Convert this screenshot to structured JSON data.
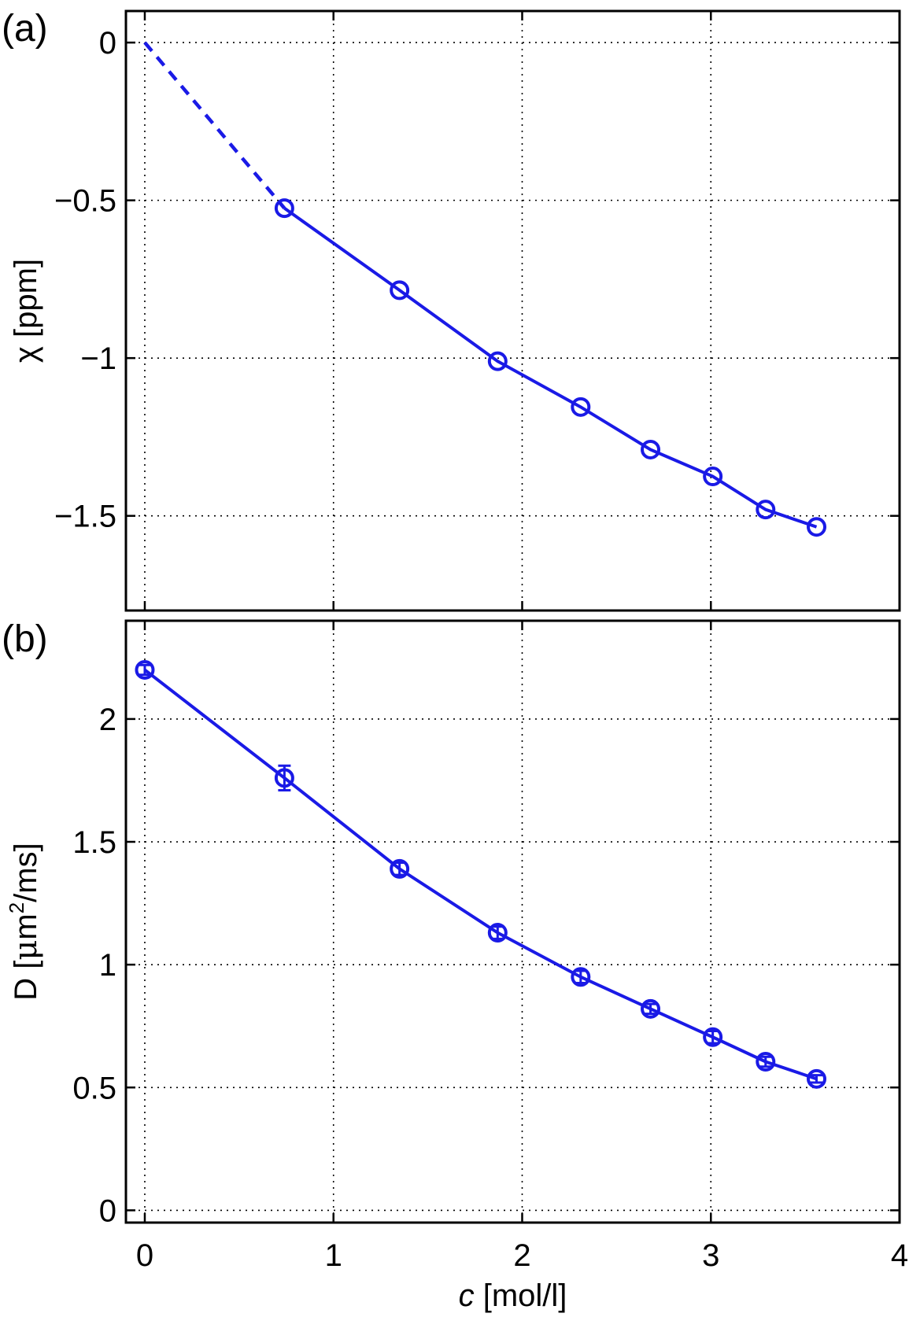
{
  "chart_data": [
    {
      "type": "line",
      "panel_label": "(a)",
      "xlabel_italic": "c",
      "xlabel_rest": " [mol/l]",
      "ylabel": "χ [ppm]",
      "xlim": [
        -0.1,
        4
      ],
      "ylim": [
        -1.8,
        0.1
      ],
      "xticks": [
        0,
        1,
        2,
        3,
        4
      ],
      "yticks": [
        0,
        -0.5,
        -1,
        -1.5
      ],
      "ytick_labels": [
        "0",
        "−0.5",
        "−1",
        "−1.5"
      ],
      "grid": true,
      "color": "#1a1ae6",
      "extrapolation": {
        "x": [
          0,
          0.74
        ],
        "y": [
          0,
          -0.525
        ],
        "style": "dashed"
      },
      "series": [
        {
          "x": [
            0.74,
            1.35,
            1.87,
            2.31,
            2.68,
            3.01,
            3.29,
            3.56
          ],
          "y": [
            -0.525,
            -0.785,
            -1.01,
            -1.155,
            -1.29,
            -1.375,
            -1.48,
            -1.535
          ],
          "marker": "open-circle"
        }
      ]
    },
    {
      "type": "line",
      "panel_label": "(b)",
      "xlabel_italic": "c",
      "xlabel_rest": " [mol/l]",
      "ylabel_parts": [
        "D [",
        "μ",
        "m",
        "2",
        "/ms]"
      ],
      "xlim": [
        -0.1,
        4
      ],
      "ylim": [
        -0.05,
        2.4
      ],
      "xticks": [
        0,
        1,
        2,
        3,
        4
      ],
      "xtick_labels": [
        "0",
        "1",
        "2",
        "3",
        "4"
      ],
      "yticks": [
        0,
        0.5,
        1,
        1.5,
        2
      ],
      "ytick_labels": [
        "0",
        "0.5",
        "1",
        "1.5",
        "2"
      ],
      "grid": true,
      "color": "#1a1ae6",
      "series": [
        {
          "x": [
            0,
            0.74,
            1.35,
            1.87,
            2.31,
            2.68,
            3.01,
            3.29,
            3.56
          ],
          "y": [
            2.2,
            1.76,
            1.39,
            1.13,
            0.95,
            0.82,
            0.705,
            0.605,
            0.535
          ],
          "err": [
            0.02,
            0.05,
            0.025,
            0.025,
            0.025,
            0.02,
            0.025,
            0.02,
            0.015
          ],
          "marker": "open-circle-errorbar"
        }
      ]
    }
  ]
}
